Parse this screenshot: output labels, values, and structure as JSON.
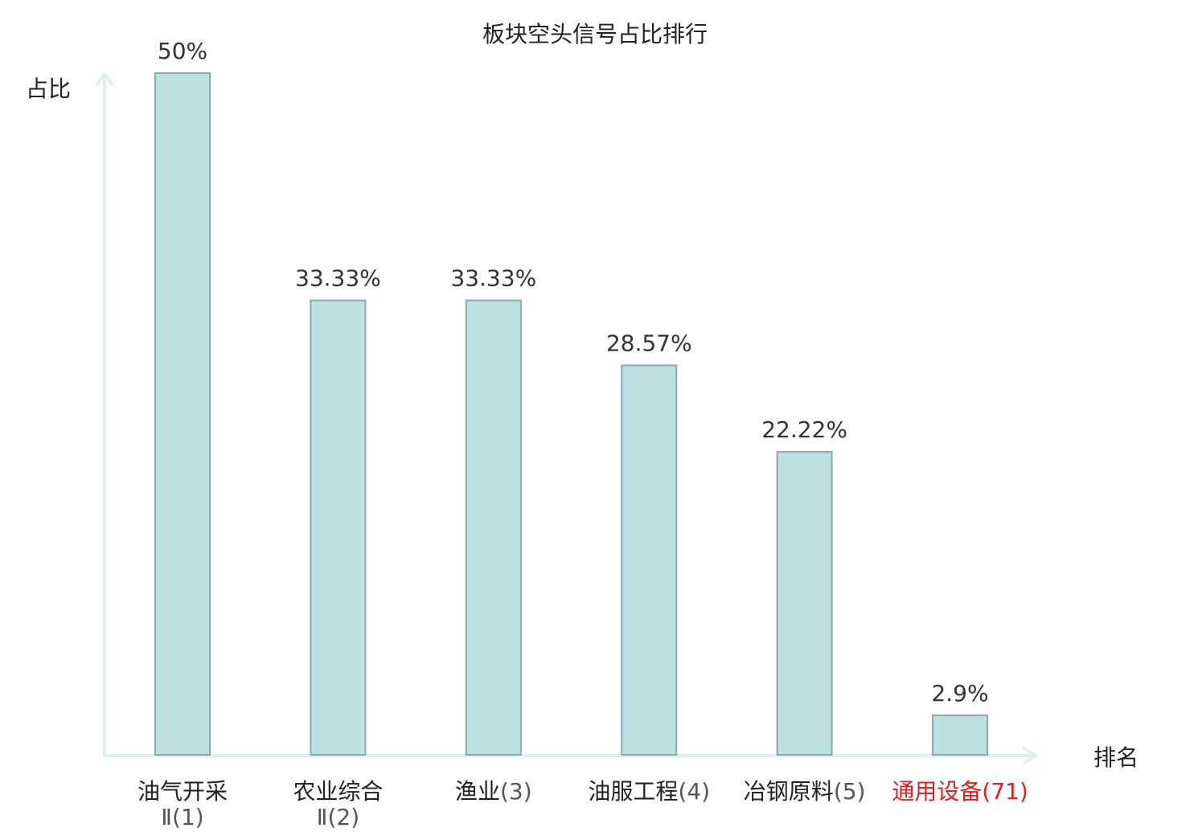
{
  "chart_data": {
    "type": "bar",
    "title": "板块空头信号占比排行",
    "xlabel": "排名",
    "ylabel": "占比",
    "ylim": [
      0,
      50
    ],
    "categories": [
      {
        "name": "油气开采",
        "name_line2": "Ⅱ",
        "rank": "(1)",
        "highlight": false
      },
      {
        "name": "农业综合",
        "name_line2": "Ⅱ",
        "rank": "(2)",
        "highlight": false
      },
      {
        "name": "渔业",
        "name_line2": "",
        "rank": "(3)",
        "highlight": false
      },
      {
        "name": "油服工程",
        "name_line2": "",
        "rank": "(4)",
        "highlight": false
      },
      {
        "name": "冶钢原料",
        "name_line2": "",
        "rank": "(5)",
        "highlight": false
      },
      {
        "name": "通用设备",
        "name_line2": "",
        "rank": "(71)",
        "highlight": true
      }
    ],
    "values": [
      50,
      33.33,
      33.33,
      28.57,
      22.22,
      2.9
    ],
    "value_labels": [
      "50%",
      "33.33%",
      "33.33%",
      "28.57%",
      "22.22%",
      "2.9%"
    ],
    "colors": {
      "bar_fill": "#bde0e2",
      "bar_stroke": "#8aa9ab",
      "axis": "#dff1ee",
      "highlight": "#e02020"
    },
    "grid": false,
    "legend": "none"
  }
}
